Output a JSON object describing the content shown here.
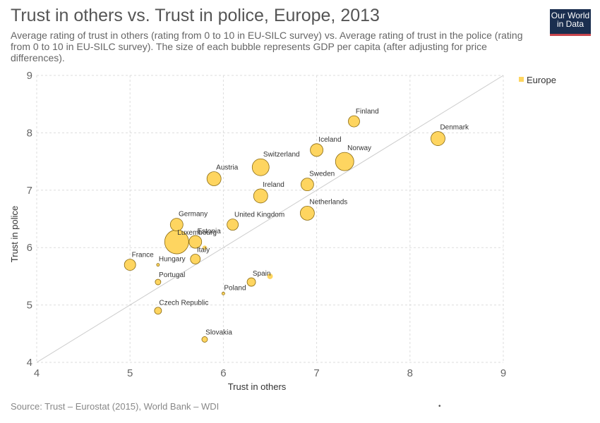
{
  "header": {
    "title": "Trust in others vs. Trust in police, Europe, 2013",
    "subtitle": "Average rating of trust in others (rating from 0 to 10 in EU-SILC survey) vs. Average rating of trust in the police (rating from 0 to 10 in EU-SILC survey). The size of each bubble represents GDP per capita (after adjusting for price differences)."
  },
  "logo": {
    "line1": "Our World",
    "line2": "in Data"
  },
  "footer": {
    "source": "Source: Trust – Eurostat (2015), World Bank – WDI",
    "dot": "•"
  },
  "colors": {
    "bubble_fill": "#fed560",
    "bubble_stroke": "#8a6a10",
    "grid": "#dddddd",
    "diagonal": "#cccccc",
    "logo_bg": "#1a2e4f",
    "logo_bar": "#c8454d"
  },
  "chart_data": {
    "type": "scatter",
    "xlabel": "Trust in others",
    "ylabel": "Trust in police",
    "xlim": [
      4,
      9
    ],
    "ylim": [
      4,
      9
    ],
    "xticks": [
      "4",
      "5",
      "6",
      "7",
      "8",
      "9"
    ],
    "yticks": [
      "4",
      "5",
      "6",
      "7",
      "8",
      "9"
    ],
    "grid": true,
    "reference_line": "y = x",
    "legend": {
      "entries": [
        "Europe"
      ],
      "placement": "right"
    },
    "bubble_size": "GDP per capita",
    "points": [
      {
        "label": "Finland",
        "x": 7.4,
        "y": 8.2,
        "size": 8
      },
      {
        "label": "Denmark",
        "x": 8.3,
        "y": 7.9,
        "size": 10
      },
      {
        "label": "Iceland",
        "x": 7.0,
        "y": 7.7,
        "size": 9
      },
      {
        "label": "Norway",
        "x": 7.3,
        "y": 7.5,
        "size": 13
      },
      {
        "label": "Switzerland",
        "x": 6.4,
        "y": 7.4,
        "size": 12
      },
      {
        "label": "Austria",
        "x": 5.9,
        "y": 7.2,
        "size": 10
      },
      {
        "label": "Sweden",
        "x": 6.9,
        "y": 7.1,
        "size": 9
      },
      {
        "label": "Ireland",
        "x": 6.4,
        "y": 6.9,
        "size": 10
      },
      {
        "label": "Netherlands",
        "x": 6.9,
        "y": 6.6,
        "size": 10
      },
      {
        "label": "Germany",
        "x": 5.5,
        "y": 6.4,
        "size": 9
      },
      {
        "label": "United Kingdom",
        "x": 6.1,
        "y": 6.4,
        "size": 8
      },
      {
        "label": "Luxembourg",
        "x": 5.5,
        "y": 6.1,
        "size": 17
      },
      {
        "label": "Estonia",
        "x": 5.7,
        "y": 6.1,
        "size": 9
      },
      {
        "label": "Italy",
        "x": 5.7,
        "y": 5.8,
        "size": 7
      },
      {
        "label": "France",
        "x": 5.0,
        "y": 5.7,
        "size": 8
      },
      {
        "label": "Hungary",
        "x": 5.3,
        "y": 5.7,
        "size": 2
      },
      {
        "label": "Spain",
        "x": 6.3,
        "y": 5.4,
        "size": 6
      },
      {
        "label": "Portugal",
        "x": 5.3,
        "y": 5.4,
        "size": 4
      },
      {
        "label": "Poland",
        "x": 6.0,
        "y": 5.2,
        "size": 2
      },
      {
        "label": "Czech Republic",
        "x": 5.3,
        "y": 4.9,
        "size": 5
      },
      {
        "label": "Slovakia",
        "x": 5.8,
        "y": 4.4,
        "size": 4
      },
      {
        "label": "",
        "x": 6.5,
        "y": 5.5,
        "size": 4
      },
      {
        "label": "",
        "x": 5.8,
        "y": 6.0,
        "size": 3
      }
    ]
  }
}
